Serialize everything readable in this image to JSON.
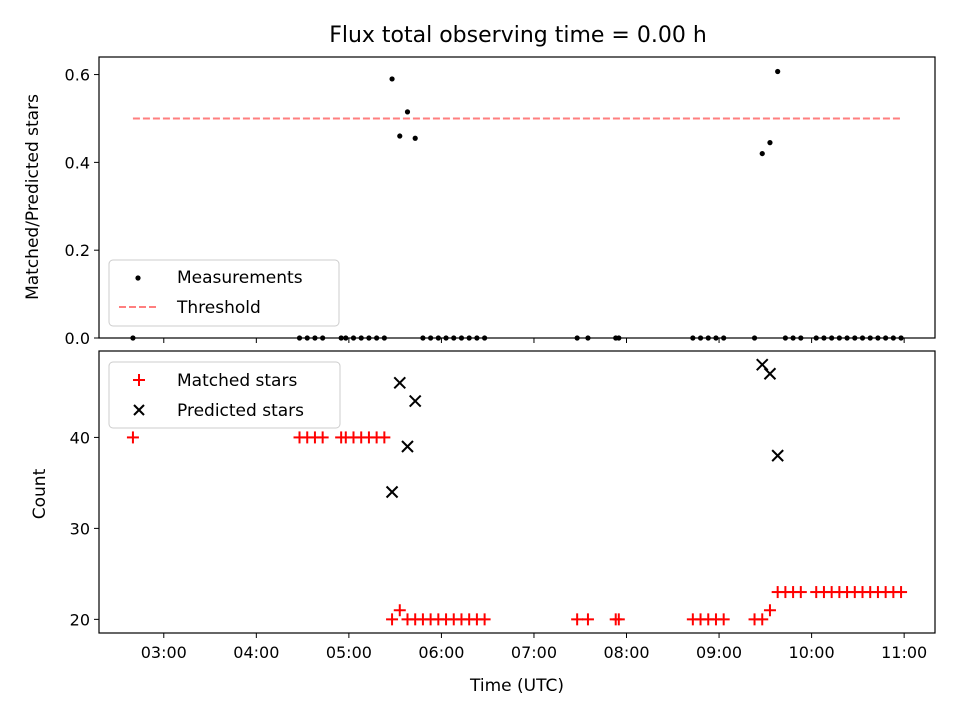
{
  "chart_data": [
    {
      "type": "scatter",
      "title": "Flux total observing time = 0.00 h",
      "xlabel": "",
      "ylabel": "Matched/Predicted stars",
      "xlim": [
        "02:18",
        "11:20"
      ],
      "ylim": [
        0,
        0.64
      ],
      "yticks": [
        0.0,
        0.2,
        0.4,
        0.6
      ],
      "ytick_labels": [
        "0.0",
        "0.2",
        "0.4",
        "0.6"
      ],
      "legend": {
        "placement": "lower-left",
        "entries": [
          "Measurements",
          "Threshold"
        ]
      },
      "series": [
        {
          "name": "Measurements",
          "marker": "dot",
          "color": "#000000",
          "points": [
            [
              "02:40",
              0
            ],
            [
              "04:28",
              0
            ],
            [
              "04:33",
              0
            ],
            [
              "04:38",
              0
            ],
            [
              "04:43",
              0
            ],
            [
              "04:55",
              0
            ],
            [
              "04:58",
              0
            ],
            [
              "05:03",
              0
            ],
            [
              "05:08",
              0
            ],
            [
              "05:13",
              0
            ],
            [
              "05:18",
              0
            ],
            [
              "05:23",
              0
            ],
            [
              "05:28",
              0.59
            ],
            [
              "05:33",
              0.46
            ],
            [
              "05:38",
              0.515
            ],
            [
              "05:43",
              0.455
            ],
            [
              "05:48",
              0
            ],
            [
              "05:53",
              0
            ],
            [
              "05:58",
              0
            ],
            [
              "06:03",
              0
            ],
            [
              "06:08",
              0
            ],
            [
              "06:13",
              0
            ],
            [
              "06:18",
              0
            ],
            [
              "06:23",
              0
            ],
            [
              "06:28",
              0
            ],
            [
              "07:28",
              0
            ],
            [
              "07:35",
              0
            ],
            [
              "07:53",
              0
            ],
            [
              "07:55",
              0
            ],
            [
              "08:43",
              0
            ],
            [
              "08:48",
              0
            ],
            [
              "08:53",
              0
            ],
            [
              "08:58",
              0
            ],
            [
              "09:03",
              0
            ],
            [
              "09:23",
              0
            ],
            [
              "09:28",
              0.42
            ],
            [
              "09:33",
              0.445
            ],
            [
              "09:38",
              0.607
            ],
            [
              "09:43",
              0
            ],
            [
              "09:48",
              0
            ],
            [
              "09:53",
              0
            ],
            [
              "10:03",
              0
            ],
            [
              "10:08",
              0
            ],
            [
              "10:13",
              0
            ],
            [
              "10:18",
              0
            ],
            [
              "10:23",
              0
            ],
            [
              "10:28",
              0
            ],
            [
              "10:33",
              0
            ],
            [
              "10:38",
              0
            ],
            [
              "10:43",
              0
            ],
            [
              "10:48",
              0
            ],
            [
              "10:53",
              0
            ],
            [
              "10:58",
              0
            ]
          ]
        },
        {
          "name": "Threshold",
          "type": "line",
          "style": "dashed",
          "color": "#ff7f7f",
          "points": [
            [
              "02:40",
              0.5
            ],
            [
              "10:58",
              0.5
            ]
          ]
        }
      ]
    },
    {
      "type": "scatter",
      "title": "",
      "xlabel": "Time (UTC)",
      "ylabel": "Count",
      "xlim": [
        "02:18",
        "11:20"
      ],
      "ylim": [
        18.5,
        49.5
      ],
      "xticks": [
        "03:00",
        "04:00",
        "05:00",
        "06:00",
        "07:00",
        "08:00",
        "09:00",
        "10:00",
        "11:00"
      ],
      "yticks": [
        20,
        30,
        40
      ],
      "ytick_labels": [
        "20",
        "30",
        "40"
      ],
      "legend": {
        "placement": "upper-left",
        "entries": [
          "Matched stars",
          "Predicted stars"
        ]
      },
      "series": [
        {
          "name": "Matched stars",
          "marker": "plus",
          "color": "#ff0000",
          "points": [
            [
              "02:40",
              40
            ],
            [
              "04:28",
              40
            ],
            [
              "04:33",
              40
            ],
            [
              "04:38",
              40
            ],
            [
              "04:43",
              40
            ],
            [
              "04:55",
              40
            ],
            [
              "04:58",
              40
            ],
            [
              "05:03",
              40
            ],
            [
              "05:08",
              40
            ],
            [
              "05:13",
              40
            ],
            [
              "05:18",
              40
            ],
            [
              "05:23",
              40
            ],
            [
              "05:28",
              20
            ],
            [
              "05:33",
              21
            ],
            [
              "05:38",
              20
            ],
            [
              "05:43",
              20
            ],
            [
              "05:48",
              20
            ],
            [
              "05:53",
              20
            ],
            [
              "05:58",
              20
            ],
            [
              "06:03",
              20
            ],
            [
              "06:08",
              20
            ],
            [
              "06:13",
              20
            ],
            [
              "06:18",
              20
            ],
            [
              "06:23",
              20
            ],
            [
              "06:28",
              20
            ],
            [
              "07:28",
              20
            ],
            [
              "07:35",
              20
            ],
            [
              "07:53",
              20
            ],
            [
              "07:55",
              20
            ],
            [
              "08:43",
              20
            ],
            [
              "08:48",
              20
            ],
            [
              "08:53",
              20
            ],
            [
              "08:58",
              20
            ],
            [
              "09:03",
              20
            ],
            [
              "09:23",
              20
            ],
            [
              "09:28",
              20
            ],
            [
              "09:33",
              21
            ],
            [
              "09:38",
              23
            ],
            [
              "09:43",
              23
            ],
            [
              "09:48",
              23
            ],
            [
              "09:53",
              23
            ],
            [
              "10:03",
              23
            ],
            [
              "10:08",
              23
            ],
            [
              "10:13",
              23
            ],
            [
              "10:18",
              23
            ],
            [
              "10:23",
              23
            ],
            [
              "10:28",
              23
            ],
            [
              "10:33",
              23
            ],
            [
              "10:38",
              23
            ],
            [
              "10:43",
              23
            ],
            [
              "10:48",
              23
            ],
            [
              "10:53",
              23
            ],
            [
              "10:58",
              23
            ]
          ]
        },
        {
          "name": "Predicted stars",
          "marker": "x",
          "color": "#000000",
          "points": [
            [
              "05:28",
              34
            ],
            [
              "05:33",
              46
            ],
            [
              "05:38",
              39
            ],
            [
              "05:43",
              44
            ],
            [
              "09:28",
              48
            ],
            [
              "09:33",
              47
            ],
            [
              "09:38",
              38
            ]
          ]
        }
      ]
    }
  ]
}
